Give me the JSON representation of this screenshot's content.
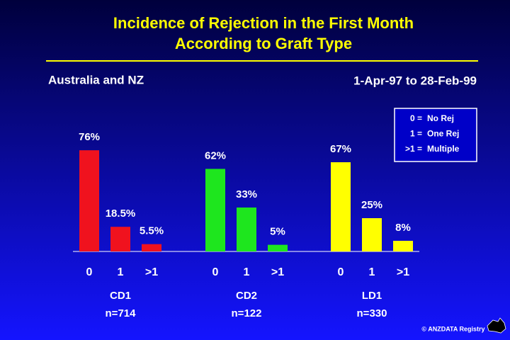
{
  "chart_data": {
    "type": "bar",
    "title": [
      "Incidence of Rejection in the First Month",
      "According to Graft Type"
    ],
    "subtitle_left": "Australia and NZ",
    "subtitle_right": "1-Apr-97 to 28-Feb-99",
    "legend": [
      {
        "key": "0 =",
        "label": "No Rej"
      },
      {
        "key": "1 =",
        "label": "One Rej"
      },
      {
        "key": ">1 =",
        "label": "Multiple"
      }
    ],
    "categories": [
      "0",
      "1",
      ">1"
    ],
    "groups": [
      {
        "name": "CD1",
        "n": "n=714",
        "color": "#f0121e",
        "values": [
          76,
          18.5,
          5.5
        ],
        "value_labels": [
          "76%",
          "18.5%",
          "5.5%"
        ]
      },
      {
        "name": "CD2",
        "n": "n=122",
        "color": "#1ee61e",
        "values": [
          62,
          33,
          5
        ],
        "value_labels": [
          "62%",
          "33%",
          "5%"
        ]
      },
      {
        "name": "LD1",
        "n": "n=330",
        "color": "#ffff00",
        "values": [
          67,
          25,
          8
        ],
        "value_labels": [
          "67%",
          "25%",
          "8%"
        ]
      }
    ],
    "footer": "© ANZDATA Registry"
  }
}
